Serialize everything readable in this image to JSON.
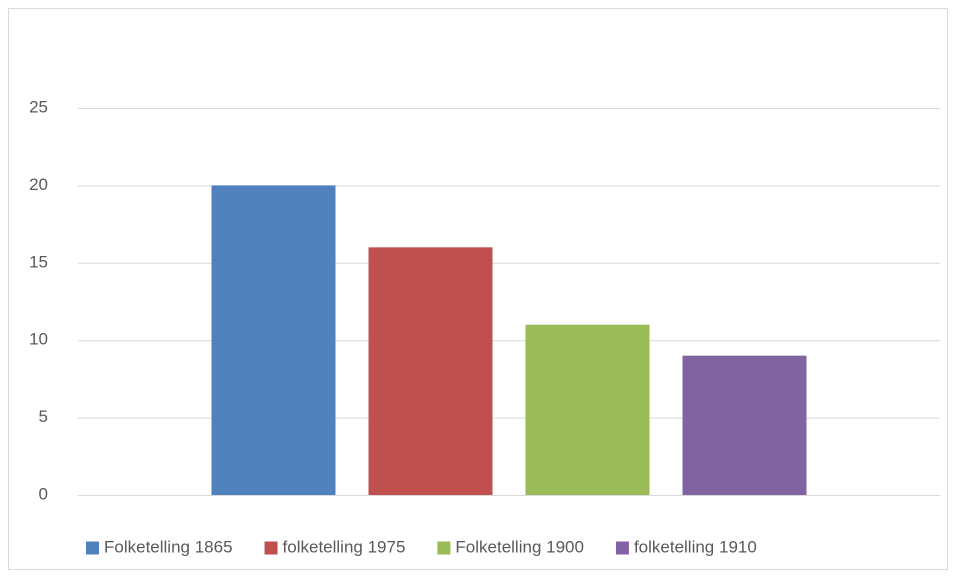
{
  "chart_data": {
    "type": "bar",
    "categories": [
      null
    ],
    "series": [
      {
        "name": "Folketelling 1865",
        "color": "#4f81bd",
        "values": [
          20
        ]
      },
      {
        "name": "folketelling 1975",
        "color": "#c0504d",
        "values": [
          16
        ]
      },
      {
        "name": "Folketelling 1900",
        "color": "#9bbb59",
        "values": [
          11
        ]
      },
      {
        "name": "folketelling 1910",
        "color": "#8064a2",
        "values": [
          9
        ]
      }
    ],
    "ylim": [
      0,
      25
    ],
    "yticks": [
      0,
      5,
      10,
      15,
      20,
      25
    ],
    "grid": true,
    "legend": "bottom"
  }
}
